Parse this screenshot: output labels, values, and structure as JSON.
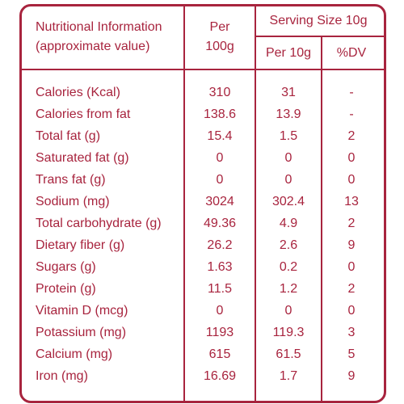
{
  "header": {
    "nutrient_col": "Nutritional Information\n(approximate value)",
    "per100_col": "Per\n100g",
    "serving_group": "Serving Size 10g",
    "per10_col": "Per 10g",
    "dv_col": "%DV"
  },
  "rows": [
    {
      "name": "Calories (Kcal)",
      "per100": "310",
      "per10": "31",
      "dv": "-"
    },
    {
      "name": "Calories from fat",
      "per100": "138.6",
      "per10": "13.9",
      "dv": "-"
    },
    {
      "name": "Total fat (g)",
      "per100": "15.4",
      "per10": "1.5",
      "dv": "2"
    },
    {
      "name": "Saturated fat (g)",
      "per100": "0",
      "per10": "0",
      "dv": "0"
    },
    {
      "name": "Trans fat (g)",
      "per100": "0",
      "per10": "0",
      "dv": "0"
    },
    {
      "name": "Sodium (mg)",
      "per100": "3024",
      "per10": "302.4",
      "dv": "13"
    },
    {
      "name": "Total carbohydrate (g)",
      "per100": "49.36",
      "per10": "4.9",
      "dv": "2"
    },
    {
      "name": "Dietary fiber (g)",
      "per100": "26.2",
      "per10": "2.6",
      "dv": "9"
    },
    {
      "name": "Sugars (g)",
      "per100": "1.63",
      "per10": "0.2",
      "dv": "0"
    },
    {
      "name": "Protein (g)",
      "per100": "11.5",
      "per10": "1.2",
      "dv": "2"
    },
    {
      "name": "Vitamin D (mcg)",
      "per100": "0",
      "per10": "0",
      "dv": "0"
    },
    {
      "name": "Potassium (mg)",
      "per100": "1193",
      "per10": "119.3",
      "dv": "3"
    },
    {
      "name": "Calcium (mg)",
      "per100": "615",
      "per10": "61.5",
      "dv": "5"
    },
    {
      "name": "Iron (mg)",
      "per100": "16.69",
      "per10": "1.7",
      "dv": "9"
    }
  ]
}
